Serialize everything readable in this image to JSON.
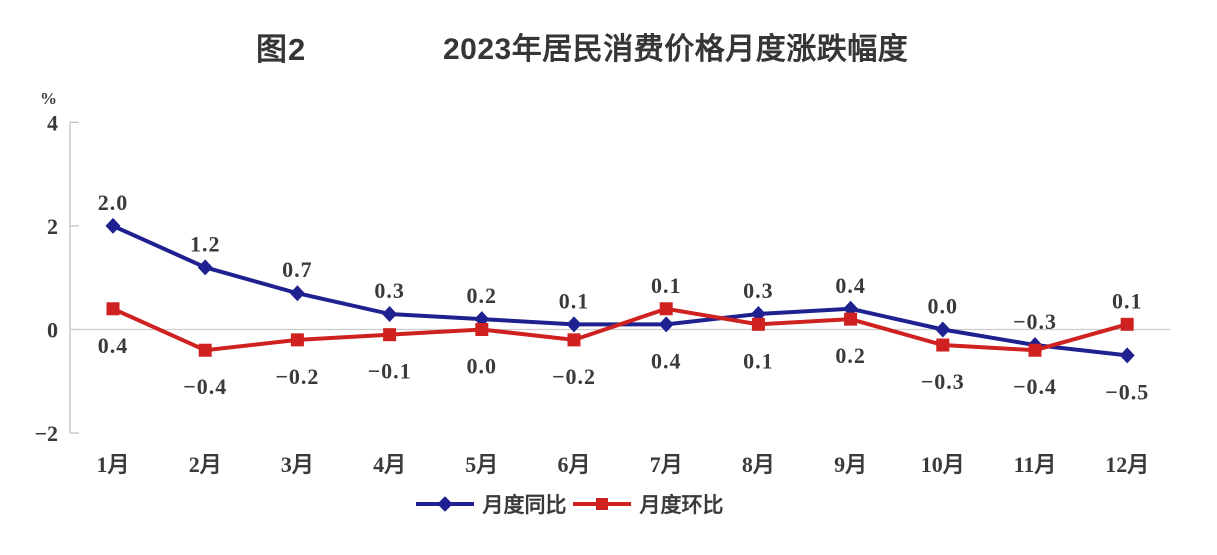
{
  "title": {
    "figure_label": "图2",
    "text": "2023年居民消费价格月度涨跌幅度"
  },
  "axis": {
    "unit_label": "%",
    "y_tick_labels": [
      "4",
      "2",
      "0",
      "−2"
    ],
    "y_tick_values": [
      4,
      2,
      0,
      -2
    ]
  },
  "chart_data": {
    "type": "line",
    "title": "2023年居民消费价格月度涨跌幅度",
    "xlabel": "",
    "ylabel": "%",
    "ylim": [
      -2,
      4
    ],
    "grid": "zero-line-only",
    "legend_position": "bottom",
    "categories": [
      "1月",
      "2月",
      "3月",
      "4月",
      "5月",
      "6月",
      "7月",
      "8月",
      "9月",
      "10月",
      "11月",
      "12月"
    ],
    "series": [
      {
        "name": "月度同比",
        "marker": "diamond",
        "color": "#1f2191",
        "values": [
          2.0,
          1.2,
          0.7,
          0.3,
          0.2,
          0.1,
          0.1,
          0.3,
          0.4,
          0.0,
          -0.3,
          -0.5
        ]
      },
      {
        "name": "月度环比",
        "marker": "square",
        "color": "#cf2120",
        "values": [
          0.4,
          -0.4,
          -0.2,
          -0.1,
          0.0,
          -0.2,
          0.4,
          0.1,
          0.2,
          -0.3,
          -0.4,
          0.1
        ]
      }
    ],
    "top_labels": [
      "2.0",
      "1.2",
      "0.7",
      "0.3",
      "0.2",
      "0.1",
      "0.1",
      "0.3",
      "0.4",
      "0.0",
      "−0.3",
      "0.1"
    ],
    "bottom_labels": [
      "0.4",
      "−0.4",
      "−0.2",
      "−0.1",
      "0.0",
      "−0.2",
      "0.4",
      "0.1",
      "0.2",
      "−0.3",
      "−0.4",
      "−0.5"
    ]
  },
  "legend": {
    "items": [
      {
        "label": "月度同比",
        "marker": "diamond",
        "color": "#1f2191"
      },
      {
        "label": "月度环比",
        "marker": "square",
        "color": "#cf2120"
      }
    ]
  },
  "colors": {
    "yoy_blue": "#1f2191",
    "mom_red": "#cf2120",
    "axis_gray": "#c6c6c6",
    "text_dark": "#3a3a3a",
    "title_dark": "#363636"
  }
}
